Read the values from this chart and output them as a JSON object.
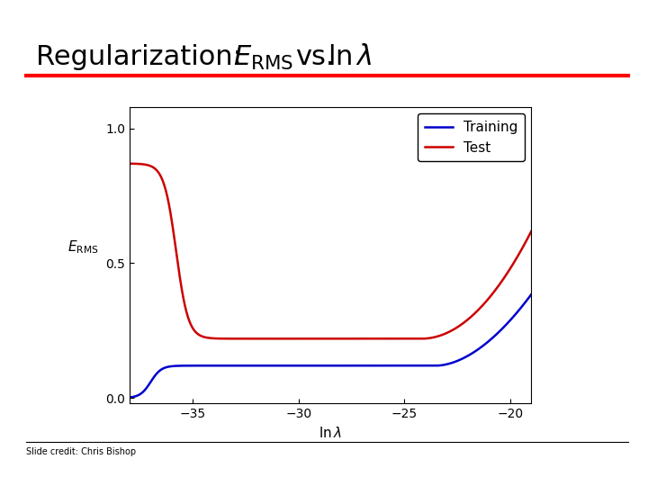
{
  "title_text_pre": "Regularization:  ",
  "title_erms": "$E_{\\mathrm{RMS}}$",
  "title_vs": " vs. ",
  "title_lnlam": "$\\ln \\lambda$",
  "title_fontsize": 22,
  "xlabel": "$\\ln \\lambda$",
  "ylabel": "$E_{\\mathrm{RMS}}$",
  "xlim": [
    -38,
    -19
  ],
  "ylim": [
    -0.02,
    1.08
  ],
  "xticks": [
    -35,
    -30,
    -25,
    -20
  ],
  "yticks": [
    0,
    0.5,
    1
  ],
  "training_color": "#0000CC",
  "test_color": "#CC0000",
  "footer_text": "Slide credit: Chris Bishop",
  "footer_fontsize": 7,
  "bg_color": "#ffffff",
  "fig_width": 7.2,
  "fig_height": 5.4,
  "dpi": 100
}
